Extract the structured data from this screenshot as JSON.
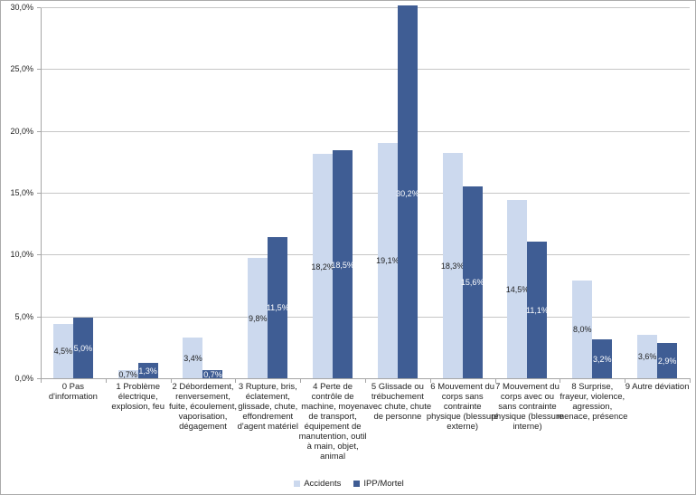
{
  "chart_data": {
    "type": "bar",
    "title": "",
    "xlabel": "",
    "ylabel": "",
    "ylim": [
      0,
      30
    ],
    "y_tick_step": 5,
    "y_tick_labels": [
      "0,0%",
      "5,0%",
      "10,0%",
      "15,0%",
      "20,0%",
      "25,0%",
      "30,0%"
    ],
    "grid": true,
    "legend_position": "bottom",
    "categories": [
      "0 Pas d'information",
      "1 Problème électrique, explosion, feu",
      "2 Débordement, renversement, fuite, écoulement, vaporisation, dégagement",
      "3 Rupture, bris, éclatement, glissade, chute, effondrement d'agent matériel",
      "4 Perte de contrôle de machine, moyen de transport, équipement de manutention, outil à main, objet, animal",
      "5 Glissade ou trébuchement avec chute, chute de personne",
      "6 Mouvement du corps sans contrainte physique (blessure externe)",
      "7 Mouvement du corps avec ou sans contrainte physique (blessure interne)",
      "8 Surprise, frayeur, violence, agression, menace, présence",
      "9 Autre déviation"
    ],
    "series": [
      {
        "name": "Accidents",
        "color": "#ccd9ee",
        "label_color": "#1f1f1f",
        "values": [
          4.5,
          0.7,
          3.4,
          9.8,
          18.2,
          19.1,
          18.3,
          14.5,
          8.0,
          3.6
        ],
        "labels": [
          "4,5%",
          "0,7%",
          "3,4%",
          "9,8%",
          "18,2%",
          "19,1%",
          "18,3%",
          "14,5%",
          "8,0%",
          "3,6%"
        ]
      },
      {
        "name": "IPP/Mortel",
        "color": "#3f5d94",
        "label_color": "#ffffff",
        "values": [
          5.0,
          1.3,
          0.7,
          11.5,
          18.5,
          30.2,
          15.6,
          11.1,
          3.2,
          2.9
        ],
        "labels": [
          "5,0%",
          "1,3%",
          "0,7%",
          "11,5%",
          "18,5%",
          "30,2%",
          "15,6%",
          "11,1%",
          "3,2%",
          "2,9%"
        ]
      }
    ]
  },
  "colors": {
    "gridline": "#c6c6c6",
    "axis_line": "#a6a6a6",
    "frame_border": "#ababab",
    "text": "#1f1f1f"
  }
}
